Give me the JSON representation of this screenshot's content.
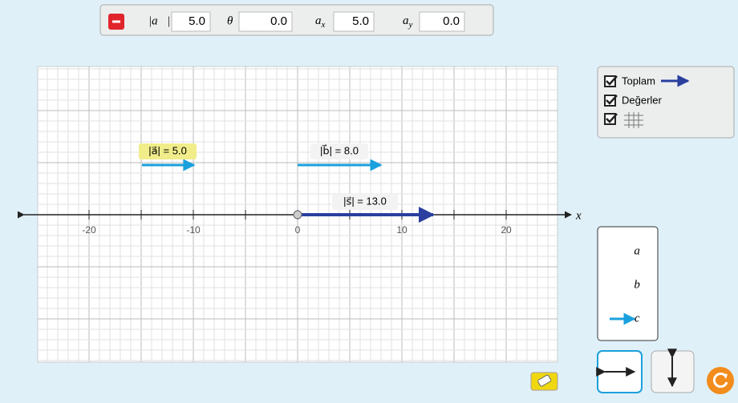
{
  "toolbar": {
    "magnitude_label": "|a⃗|",
    "magnitude": "5.0",
    "angle_label": "θ",
    "angle": "0.0",
    "ax_label": "a",
    "ax_sub": "x",
    "ax": "5.0",
    "ay_label": "a",
    "ay_sub": "y",
    "ay": "0.0"
  },
  "graph": {
    "axis_label": "x",
    "ticks": [
      "-20",
      "-10",
      "0",
      "10",
      "20"
    ],
    "vectors": [
      {
        "label": "|a⃗| = 5.0"
      },
      {
        "label": "|b⃗| = 8.0"
      },
      {
        "label": "|s⃗| = 13.0"
      }
    ]
  },
  "options": {
    "sum": "Toplam",
    "values": "Değerler"
  },
  "bin": [
    "a⃗",
    "b⃗",
    "c⃗"
  ]
}
